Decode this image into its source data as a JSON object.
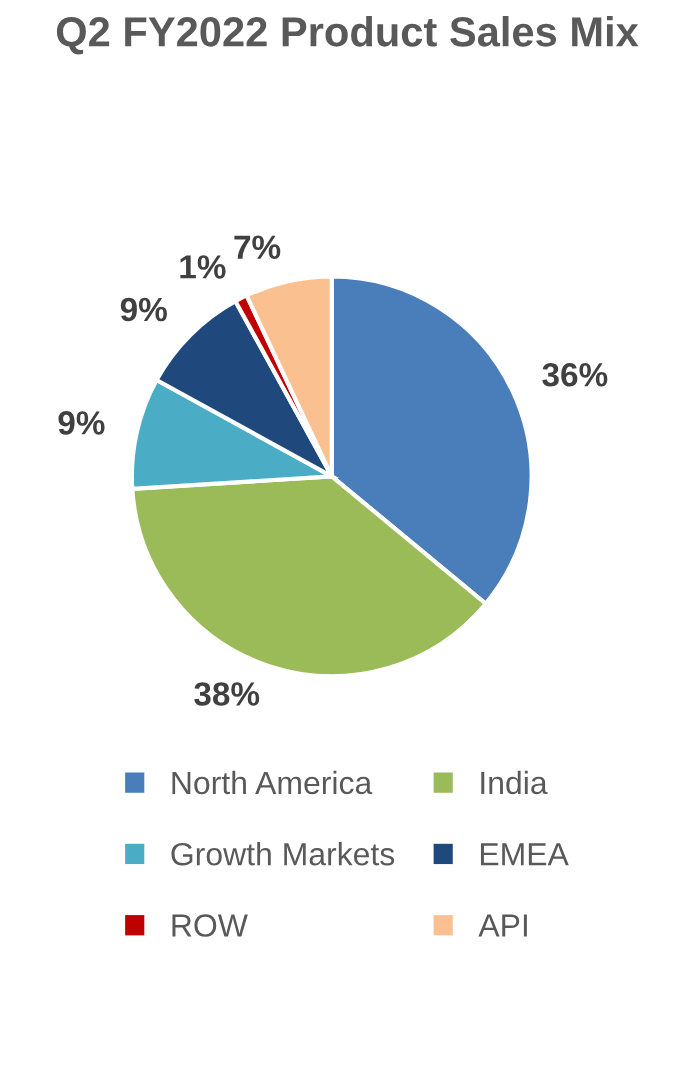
{
  "chart_data": {
    "type": "pie",
    "title": "Q2 FY2022 Product Sales Mix",
    "categories": [
      "North America",
      "India",
      "Growth Markets",
      "EMEA",
      "ROW",
      "API"
    ],
    "values": [
      36,
      38,
      9,
      9,
      1,
      7
    ],
    "colors": [
      "#4a7ebb",
      "#9bbb59",
      "#4bacc6",
      "#1f497d",
      "#c00000",
      "#fac090"
    ],
    "value_labels": [
      "36%",
      "38%",
      "9%",
      "9%",
      "1%",
      "7%"
    ],
    "legend": "bottom"
  }
}
